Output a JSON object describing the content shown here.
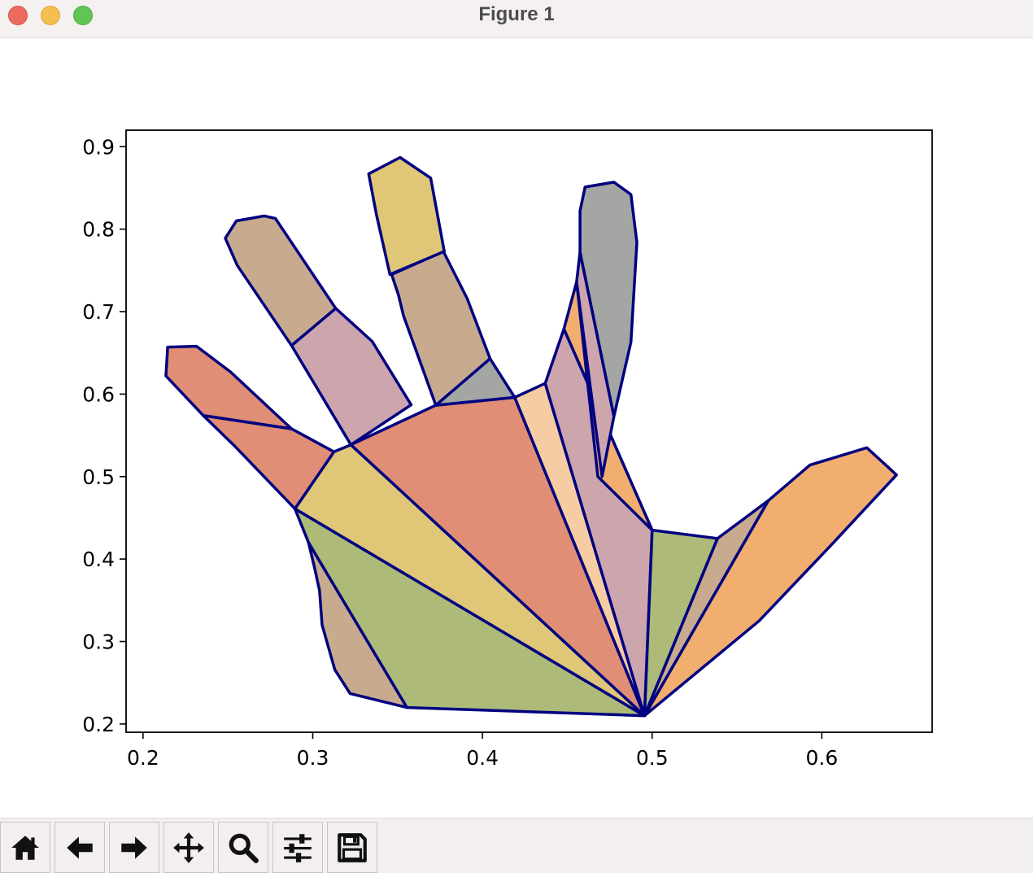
{
  "window": {
    "title": "Figure 1"
  },
  "toolbar": {
    "buttons": [
      {
        "name": "home-button",
        "icon": "home-icon"
      },
      {
        "name": "back-button",
        "icon": "arrow-left-icon"
      },
      {
        "name": "forward-button",
        "icon": "arrow-right-icon"
      },
      {
        "name": "pan-button",
        "icon": "move-icon"
      },
      {
        "name": "zoom-button",
        "icon": "magnifier-icon"
      },
      {
        "name": "configure-subplots-button",
        "icon": "sliders-icon"
      },
      {
        "name": "save-button",
        "icon": "floppy-disk-icon"
      }
    ]
  },
  "chart_data": {
    "type": "polygon-patches",
    "xlim": [
      0.19,
      0.665
    ],
    "ylim": [
      0.19,
      0.92
    ],
    "xticks": [
      0.2,
      0.3,
      0.4,
      0.5,
      0.6
    ],
    "xtick_labels": [
      "0.2",
      "0.3",
      "0.4",
      "0.5",
      "0.6"
    ],
    "yticks": [
      0.2,
      0.3,
      0.4,
      0.5,
      0.6,
      0.7,
      0.8,
      0.9
    ],
    "ytick_labels": [
      "0.2",
      "0.3",
      "0.4",
      "0.5",
      "0.6",
      "0.7",
      "0.8",
      "0.9"
    ],
    "edge_color": "#000080",
    "grid": false,
    "patches": [
      {
        "color": "#c8ab8f",
        "points": [
          [
            0.2975,
            0.42
          ],
          [
            0.301,
            0.39
          ],
          [
            0.304,
            0.362
          ],
          [
            0.3055,
            0.32
          ],
          [
            0.313,
            0.266
          ],
          [
            0.322,
            0.237
          ],
          [
            0.3555,
            0.22
          ]
        ]
      },
      {
        "color": "#adba78",
        "points": [
          [
            0.2895,
            0.461
          ],
          [
            0.2975,
            0.42
          ],
          [
            0.3555,
            0.22
          ],
          [
            0.4955,
            0.21
          ]
        ]
      },
      {
        "color": "#e0c778",
        "points": [
          [
            0.2895,
            0.461
          ],
          [
            0.3125,
            0.53
          ],
          [
            0.3225,
            0.5385
          ],
          [
            0.4955,
            0.21
          ]
        ]
      },
      {
        "color": "#e08e75",
        "points": [
          [
            0.3225,
            0.5385
          ],
          [
            0.3725,
            0.5865
          ],
          [
            0.419,
            0.596
          ],
          [
            0.4955,
            0.21
          ]
        ]
      },
      {
        "color": "#f6cca2",
        "points": [
          [
            0.419,
            0.596
          ],
          [
            0.437,
            0.613
          ],
          [
            0.4955,
            0.21
          ]
        ]
      },
      {
        "color": "#cca5ad",
        "points": [
          [
            0.437,
            0.613
          ],
          [
            0.448,
            0.679
          ],
          [
            0.5,
            0.435
          ],
          [
            0.4955,
            0.21
          ]
        ]
      },
      {
        "color": "#adba78",
        "points": [
          [
            0.5,
            0.435
          ],
          [
            0.5385,
            0.425
          ],
          [
            0.4955,
            0.21
          ]
        ]
      },
      {
        "color": "#c8ab8f",
        "points": [
          [
            0.5385,
            0.425
          ],
          [
            0.5685,
            0.471
          ],
          [
            0.4955,
            0.21
          ]
        ]
      },
      {
        "color": "#f2ae6f",
        "points": [
          [
            0.5685,
            0.471
          ],
          [
            0.593,
            0.514
          ],
          [
            0.6265,
            0.535
          ],
          [
            0.644,
            0.502
          ],
          [
            0.6055,
            0.417
          ],
          [
            0.563,
            0.325
          ],
          [
            0.4955,
            0.21
          ]
        ]
      },
      {
        "color": "#f2ae6f",
        "points": [
          [
            0.448,
            0.679
          ],
          [
            0.4555,
            0.736
          ],
          [
            0.468,
            0.5
          ],
          [
            0.5,
            0.435
          ]
        ]
      },
      {
        "color": "#cca5ad",
        "points": [
          [
            0.4555,
            0.736
          ],
          [
            0.4575,
            0.772
          ],
          [
            0.4775,
            0.573
          ],
          [
            0.4705,
            0.5
          ]
        ]
      },
      {
        "color": "#a3a6a2",
        "points": [
          [
            0.4575,
            0.772
          ],
          [
            0.4575,
            0.822
          ],
          [
            0.4605,
            0.851
          ],
          [
            0.4775,
            0.857
          ],
          [
            0.4875,
            0.842
          ],
          [
            0.491,
            0.784
          ],
          [
            0.4875,
            0.663
          ],
          [
            0.4775,
            0.573
          ]
        ]
      },
      {
        "color": "#a3a6a2",
        "points": [
          [
            0.3725,
            0.5865
          ],
          [
            0.4045,
            0.643
          ],
          [
            0.419,
            0.596
          ]
        ]
      },
      {
        "color": "#c8ab8f",
        "points": [
          [
            0.3465,
            0.745
          ],
          [
            0.3505,
            0.72
          ],
          [
            0.3535,
            0.695
          ],
          [
            0.3725,
            0.5865
          ],
          [
            0.4045,
            0.643
          ],
          [
            0.391,
            0.716
          ],
          [
            0.377,
            0.773
          ]
        ]
      },
      {
        "color": "#e0c778",
        "points": [
          [
            0.3455,
            0.745
          ],
          [
            0.3375,
            0.818
          ],
          [
            0.333,
            0.867
          ],
          [
            0.3515,
            0.887
          ],
          [
            0.3695,
            0.862
          ],
          [
            0.3775,
            0.773
          ]
        ]
      },
      {
        "color": "#cca5ad",
        "points": [
          [
            0.2875,
            0.659
          ],
          [
            0.3135,
            0.704
          ],
          [
            0.335,
            0.664
          ],
          [
            0.358,
            0.587
          ],
          [
            0.3225,
            0.5385
          ]
        ]
      },
      {
        "color": "#c8ab8f",
        "points": [
          [
            0.2875,
            0.659
          ],
          [
            0.2555,
            0.756
          ],
          [
            0.2485,
            0.789
          ],
          [
            0.255,
            0.81
          ],
          [
            0.2715,
            0.816
          ],
          [
            0.278,
            0.813
          ],
          [
            0.3135,
            0.704
          ]
        ]
      },
      {
        "color": "#e08e75",
        "points": [
          [
            0.2355,
            0.574
          ],
          [
            0.2875,
            0.558
          ],
          [
            0.3125,
            0.53
          ],
          [
            0.2895,
            0.461
          ],
          [
            0.2535,
            0.538
          ]
        ]
      },
      {
        "color": "#e08e75",
        "points": [
          [
            0.2355,
            0.574
          ],
          [
            0.2135,
            0.622
          ],
          [
            0.2145,
            0.657
          ],
          [
            0.2315,
            0.658
          ],
          [
            0.2515,
            0.627
          ],
          [
            0.2875,
            0.558
          ]
        ]
      }
    ]
  }
}
